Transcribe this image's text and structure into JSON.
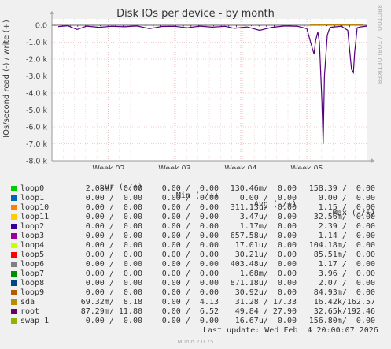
{
  "chart_data": {
    "type": "line",
    "title": "Disk IOs per device - by month",
    "ylabel": "IOs/second read (-) / write (+)",
    "ylim": [
      -8000,
      100
    ],
    "yticks": [
      {
        "value": 0,
        "label": "0.0"
      },
      {
        "value": -1000,
        "label": "-1.0 k"
      },
      {
        "value": -2000,
        "label": "-2.0 k"
      },
      {
        "value": -3000,
        "label": "-3.0 k"
      },
      {
        "value": -4000,
        "label": "-4.0 k"
      },
      {
        "value": -5000,
        "label": "-5.0 k"
      },
      {
        "value": -6000,
        "label": "-6.0 k"
      },
      {
        "value": -7000,
        "label": "-7.0 k"
      },
      {
        "value": -8000,
        "label": "-8.0 k"
      }
    ],
    "xticks": [
      "Week 02",
      "Week 03",
      "Week 04",
      "Week 05"
    ],
    "grid": true,
    "series": [
      {
        "name": "root",
        "color": "#55007f",
        "points": [
          [
            0.02,
            -80
          ],
          [
            0.05,
            -30
          ],
          [
            0.08,
            -250
          ],
          [
            0.11,
            -50
          ],
          [
            0.15,
            -120
          ],
          [
            0.19,
            -60
          ],
          [
            0.23,
            -90
          ],
          [
            0.27,
            -40
          ],
          [
            0.31,
            -200
          ],
          [
            0.35,
            -70
          ],
          [
            0.39,
            -60
          ],
          [
            0.43,
            -150
          ],
          [
            0.47,
            -50
          ],
          [
            0.51,
            -110
          ],
          [
            0.55,
            -60
          ],
          [
            0.58,
            -180
          ],
          [
            0.62,
            -100
          ],
          [
            0.66,
            -300
          ],
          [
            0.7,
            -120
          ],
          [
            0.74,
            -40
          ],
          [
            0.78,
            -60
          ],
          [
            0.81,
            -200
          ],
          [
            0.828,
            -1400
          ],
          [
            0.833,
            -1700
          ],
          [
            0.838,
            -900
          ],
          [
            0.845,
            -400
          ],
          [
            0.85,
            -1000
          ],
          [
            0.858,
            -4500
          ],
          [
            0.862,
            -7000
          ],
          [
            0.866,
            -3000
          ],
          [
            0.875,
            -600
          ],
          [
            0.88,
            -300
          ],
          [
            0.885,
            -120
          ],
          [
            0.92,
            -60
          ],
          [
            0.94,
            -300
          ],
          [
            0.952,
            -2600
          ],
          [
            0.958,
            -2800
          ],
          [
            0.962,
            -1600
          ],
          [
            0.966,
            -900
          ],
          [
            0.97,
            -150
          ],
          [
            0.98,
            -100
          ],
          [
            1.0,
            -50
          ]
        ]
      },
      {
        "name": "sda",
        "color": "#b8860b",
        "points": [
          [
            0.82,
            30
          ],
          [
            0.86,
            20
          ],
          [
            0.95,
            25
          ],
          [
            0.99,
            40
          ]
        ]
      }
    ]
  },
  "legend_header": {
    "cur": "Cur (-/+)",
    "min": "Min (-/+)",
    "avg": "Avg (-/+)",
    "max": "Max (-/+)"
  },
  "legend": [
    {
      "name": "loop0",
      "color": "#00cc00",
      "cur": "2.08m/  0.00",
      "min": "0.00 /  0.00",
      "avg": "130.46m/  0.00",
      "max": "158.39 /  0.00"
    },
    {
      "name": "loop1",
      "color": "#0066b3",
      "cur": "0.00 /  0.00",
      "min": "0.00 /  0.00",
      "avg": "0.00 /  0.00",
      "max": "0.00 /  0.00"
    },
    {
      "name": "loop10",
      "color": "#ff8000",
      "cur": "0.00 /  0.00",
      "min": "0.00 /  0.00",
      "avg": "311.13u/  0.00",
      "max": "1.15 /  0.00"
    },
    {
      "name": "loop11",
      "color": "#ffcc00",
      "cur": "0.00 /  0.00",
      "min": "0.00 /  0.00",
      "avg": "3.47u/  0.00",
      "max": "32.56m/  0.00"
    },
    {
      "name": "loop2",
      "color": "#330099",
      "cur": "0.00 /  0.00",
      "min": "0.00 /  0.00",
      "avg": "1.17m/  0.00",
      "max": "2.39 /  0.00"
    },
    {
      "name": "loop3",
      "color": "#990099",
      "cur": "0.00 /  0.00",
      "min": "0.00 /  0.00",
      "avg": "657.58u/  0.00",
      "max": "1.14 /  0.00"
    },
    {
      "name": "loop4",
      "color": "#ccff00",
      "cur": "0.00 /  0.00",
      "min": "0.00 /  0.00",
      "avg": "17.01u/  0.00",
      "max": "104.18m/  0.00"
    },
    {
      "name": "loop5",
      "color": "#ff0000",
      "cur": "0.00 /  0.00",
      "min": "0.00 /  0.00",
      "avg": "30.21u/  0.00",
      "max": "85.51m/  0.00"
    },
    {
      "name": "loop6",
      "color": "#808080",
      "cur": "0.00 /  0.00",
      "min": "0.00 /  0.00",
      "avg": "403.48u/  0.00",
      "max": "1.17 /  0.00"
    },
    {
      "name": "loop7",
      "color": "#008f00",
      "cur": "0.00 /  0.00",
      "min": "0.00 /  0.00",
      "avg": "1.68m/  0.00",
      "max": "3.96 /  0.00"
    },
    {
      "name": "loop8",
      "color": "#00487d",
      "cur": "0.00 /  0.00",
      "min": "0.00 /  0.00",
      "avg": "871.18u/  0.00",
      "max": "2.07 /  0.00"
    },
    {
      "name": "loop9",
      "color": "#b35a00",
      "cur": "0.00 /  0.00",
      "min": "0.00 /  0.00",
      "avg": "30.92u/  0.00",
      "max": "84.93m/  0.00"
    },
    {
      "name": "sda",
      "color": "#b38f00",
      "cur": "69.32m/  8.18",
      "min": "0.00 /  4.13",
      "avg": "31.28 / 17.33",
      "max": "16.42k/162.57"
    },
    {
      "name": "root",
      "color": "#6b006b",
      "cur": "87.29m/ 11.80",
      "min": "0.00 /  6.52",
      "avg": "49.84 / 27.90",
      "max": "32.65k/192.46"
    },
    {
      "name": "swap_1",
      "color": "#8fb300",
      "cur": "0.00 /  0.00",
      "min": "0.00 /  0.00",
      "avg": "16.67u/  0.00",
      "max": "156.80m/  0.00"
    }
  ],
  "last_update": "Last update: Wed Feb  4 20:00:07 2026",
  "munin_version": "Munin 2.0.75",
  "side_label": "RRDTOOL / TOBI OETIKER"
}
